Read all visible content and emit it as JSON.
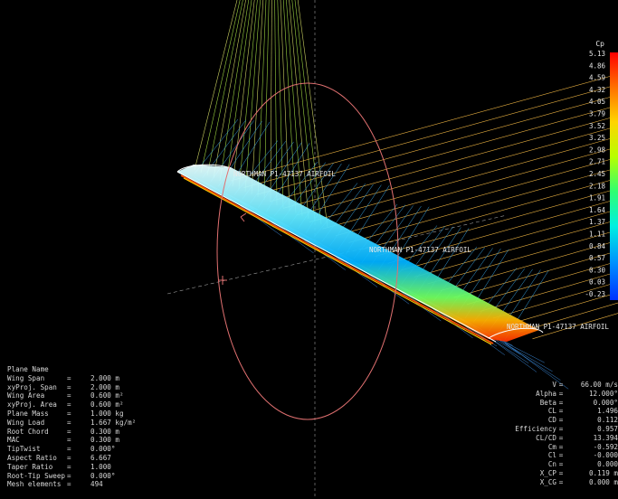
{
  "legend": {
    "title": "Cp",
    "ticks": [
      "5.13",
      "4.86",
      "4.59",
      "4.32",
      "4.05",
      "3.79",
      "3.52",
      "3.25",
      "2.98",
      "2.71",
      "2.45",
      "2.18",
      "1.91",
      "1.64",
      "1.37",
      "1.11",
      "0.84",
      "0.57",
      "0.30",
      "0.03",
      "-0.23"
    ],
    "colors": [
      "#ff0000",
      "#ff6a00",
      "#ffd000",
      "#c8ff00",
      "#40ff60",
      "#00ffd0",
      "#00a0ff",
      "#0040ff"
    ]
  },
  "airfoil_labels": [
    "NORTHMAN P1-47137 AIRFOIL",
    "NORTHMAN P1-47137 AIRFOIL",
    "NORTHMAN P1-47137 AIRFOIL"
  ],
  "plane": {
    "header": "Plane Name",
    "rows": [
      {
        "label": "Wing Span",
        "eq": "=",
        "value": "2.000 m"
      },
      {
        "label": "xyProj. Span",
        "eq": "=",
        "value": "2.000 m"
      },
      {
        "label": "Wing Area",
        "eq": "=",
        "value": "0.600 m²"
      },
      {
        "label": "xyProj. Area",
        "eq": "=",
        "value": "0.600 m²"
      },
      {
        "label": "Plane Mass",
        "eq": "=",
        "value": "1.000 kg"
      },
      {
        "label": "Wing Load",
        "eq": "=",
        "value": "1.667 kg/m²"
      },
      {
        "label": "Root Chord",
        "eq": "=",
        "value": "0.300 m"
      },
      {
        "label": "MAC",
        "eq": "=",
        "value": "0.300 m"
      },
      {
        "label": "TipTwist",
        "eq": "=",
        "value": "0.000°"
      },
      {
        "label": "Aspect Ratio",
        "eq": "=",
        "value": "6.667"
      },
      {
        "label": "Taper Ratio",
        "eq": "=",
        "value": "1.000"
      },
      {
        "label": "Root-Tip Sweep",
        "eq": "=",
        "value": "0.000°"
      },
      {
        "label": "Mesh elements",
        "eq": "=",
        "value": "494"
      }
    ]
  },
  "results": [
    {
      "label": "V",
      "eq": "=",
      "value": "66.00 m/s"
    },
    {
      "label": "Alpha",
      "eq": "=",
      "value": "12.000°"
    },
    {
      "label": "Beta",
      "eq": "=",
      "value": "0.000°"
    },
    {
      "label": "CL",
      "eq": "=",
      "value": "1.496"
    },
    {
      "label": "CD",
      "eq": "=",
      "value": "0.112"
    },
    {
      "label": "Efficiency",
      "eq": "=",
      "value": "0.957"
    },
    {
      "label": "CL/CD",
      "eq": "=",
      "value": "13.394"
    },
    {
      "label": "Cm",
      "eq": "=",
      "value": "-0.592"
    },
    {
      "label": "Cl",
      "eq": "=",
      "value": "-0.000"
    },
    {
      "label": "Cn",
      "eq": "=",
      "value": "0.000"
    },
    {
      "label": "X_CP",
      "eq": "=",
      "value": "0.119 m"
    },
    {
      "label": "X_CG",
      "eq": "=",
      "value": "0.000 m"
    }
  ]
}
